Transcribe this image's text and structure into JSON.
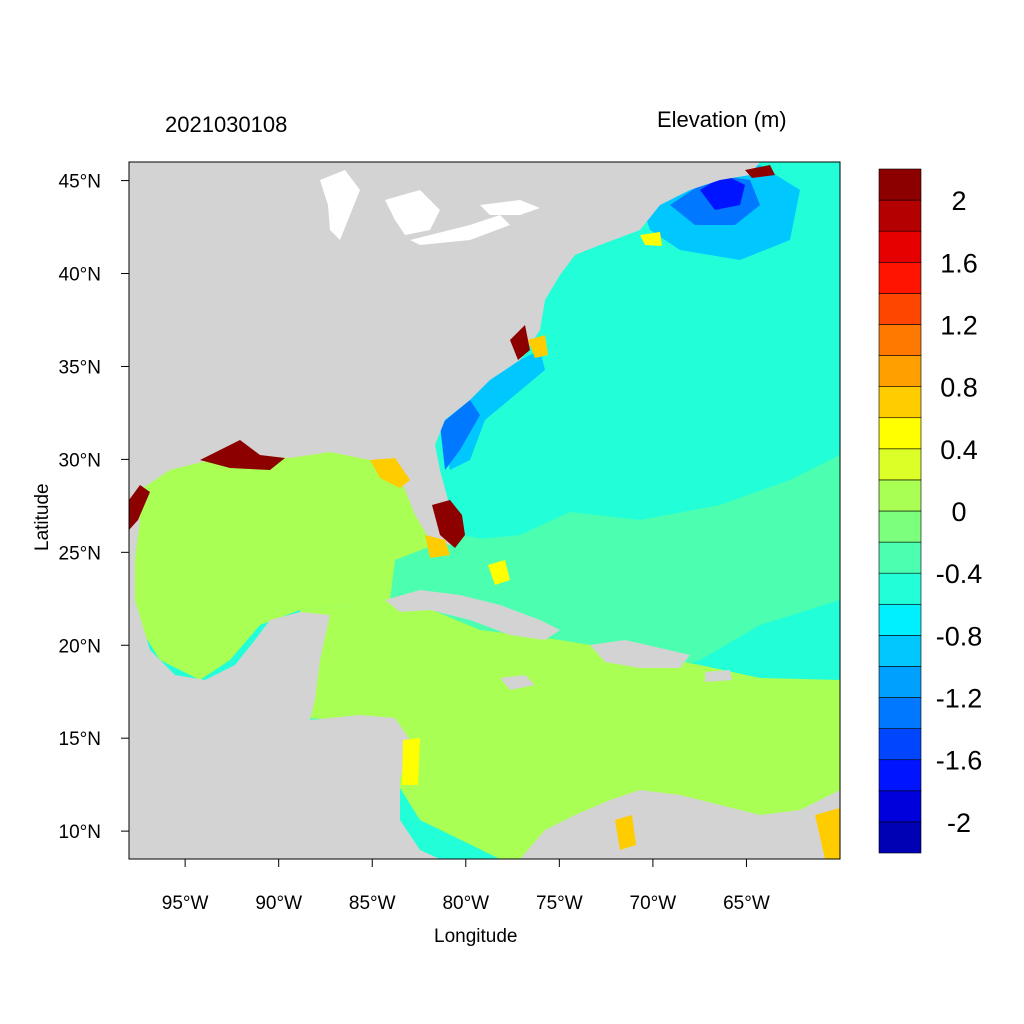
{
  "header": {
    "datetime": "2021030108",
    "colorbar_title": "Elevation (m)"
  },
  "axes": {
    "xlabel": "Longitude",
    "ylabel": "Latitude",
    "lon_ticks": [
      {
        "value": -95,
        "label": "95°W"
      },
      {
        "value": -90,
        "label": "90°W"
      },
      {
        "value": -85,
        "label": "85°W"
      },
      {
        "value": -80,
        "label": "80°W"
      },
      {
        "value": -75,
        "label": "75°W"
      },
      {
        "value": -70,
        "label": "70°W"
      },
      {
        "value": -65,
        "label": "65°W"
      }
    ],
    "lat_ticks": [
      {
        "value": 45,
        "label": "45°N"
      },
      {
        "value": 40,
        "label": "40°N"
      },
      {
        "value": 35,
        "label": "35°N"
      },
      {
        "value": 30,
        "label": "30°N"
      },
      {
        "value": 25,
        "label": "25°N"
      },
      {
        "value": 20,
        "label": "20°N"
      },
      {
        "value": 15,
        "label": "15°N"
      },
      {
        "value": 10,
        "label": "10°N"
      }
    ],
    "lon_range": [
      -98,
      -60
    ],
    "lat_range": [
      8.5,
      46
    ]
  },
  "colorbar": {
    "colors": [
      "#0000b4",
      "#0000dc",
      "#0014ff",
      "#0046ff",
      "#0078ff",
      "#00a0ff",
      "#00c8ff",
      "#00f0ff",
      "#22ffd8",
      "#4cffb0",
      "#7cff7c",
      "#aaff55",
      "#dcff28",
      "#ffff00",
      "#ffcc00",
      "#ffa000",
      "#ff7800",
      "#ff4600",
      "#ff1400",
      "#e60000",
      "#b40000",
      "#8c0000"
    ],
    "labels": [
      "-2",
      "-1.6",
      "-1.2",
      "-0.8",
      "-0.4",
      "0",
      "0.4",
      "0.8",
      "1.2",
      "1.6",
      "2"
    ]
  },
  "map_colors": {
    "land": "#d3d3d3",
    "lakes": "#ffffff",
    "gulf_caribbean": "#aaff55",
    "atlantic": "#22ffd8",
    "transition": "#4cffb0",
    "coast_low": "#00c8ff",
    "coast_lower": "#0078ff",
    "gulf_of_maine": "#0014ff",
    "surge_high": "#8c0000",
    "surge_mid": "#ff4600",
    "surge_warm": "#ffcc00",
    "surge_yellow": "#ffff00"
  }
}
